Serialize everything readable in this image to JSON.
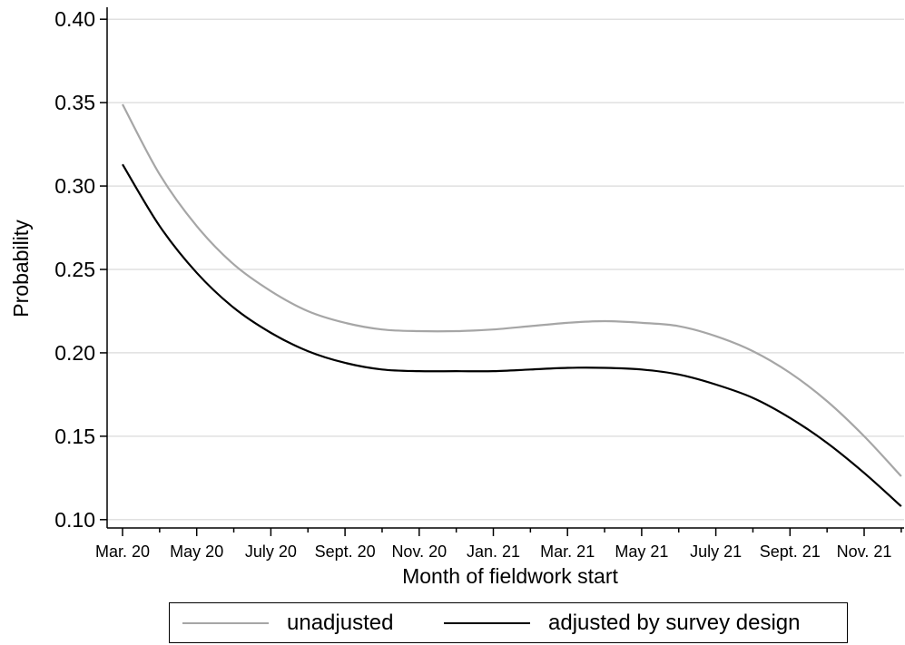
{
  "chart_data": {
    "type": "line",
    "title": "",
    "xlabel": "Month of fieldwork start",
    "ylabel": "Probability",
    "ylim": [
      0.095,
      0.405
    ],
    "yticks": [
      "0.10",
      "0.15",
      "0.20",
      "0.25",
      "0.30",
      "0.35",
      "0.40"
    ],
    "ytick_values": [
      0.1,
      0.15,
      0.2,
      0.25,
      0.3,
      0.35,
      0.4
    ],
    "xticks": [
      "Mar. 20",
      "May 20",
      "July 20",
      "Sept. 20",
      "Nov. 20",
      "Jan. 21",
      "Mar. 21",
      "May 21",
      "July 21",
      "Sept. 21",
      "Nov. 21"
    ],
    "x": [
      "Mar. 20",
      "Apr. 20",
      "May 20",
      "Jun. 20",
      "July 20",
      "Aug. 20",
      "Sept. 20",
      "Oct. 20",
      "Nov. 20",
      "Dec. 20",
      "Jan. 21",
      "Feb. 21",
      "Mar. 21",
      "Apr. 21",
      "May 21",
      "Jun. 21",
      "July 21",
      "Aug. 21",
      "Sept. 21",
      "Oct. 21",
      "Nov. 21",
      "Dec. 21"
    ],
    "grid": true,
    "legend_position": "bottom",
    "series": [
      {
        "name": "unadjusted",
        "color": "#a6a6a6",
        "values": [
          0.349,
          0.307,
          0.276,
          0.253,
          0.237,
          0.225,
          0.218,
          0.214,
          0.213,
          0.213,
          0.214,
          0.216,
          0.218,
          0.219,
          0.218,
          0.216,
          0.21,
          0.201,
          0.188,
          0.171,
          0.15,
          0.126
        ]
      },
      {
        "name": "adjusted by survey design",
        "color": "#000000",
        "values": [
          0.313,
          0.276,
          0.248,
          0.227,
          0.212,
          0.201,
          0.194,
          0.19,
          0.189,
          0.189,
          0.189,
          0.19,
          0.191,
          0.191,
          0.19,
          0.187,
          0.181,
          0.173,
          0.161,
          0.146,
          0.128,
          0.108
        ]
      }
    ]
  }
}
